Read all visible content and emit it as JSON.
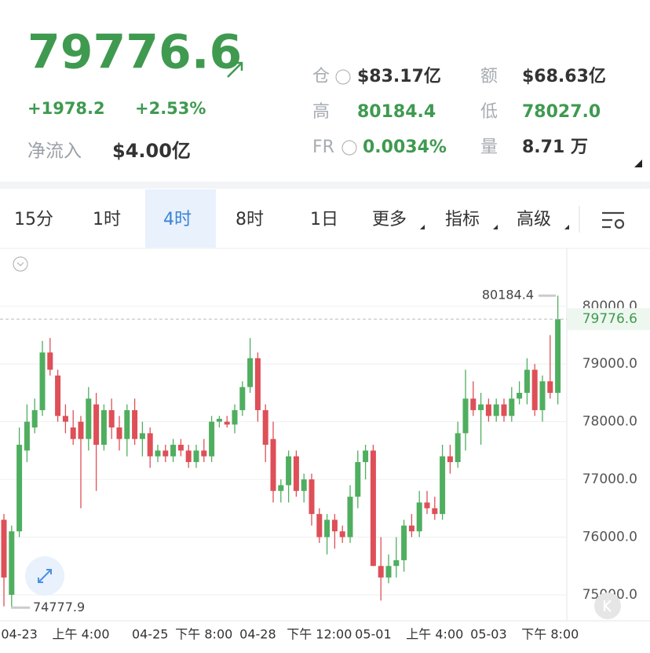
{
  "header": {
    "price": "79776.6",
    "change": "+1978.2",
    "change_pct": "+2.53%",
    "net_flow_label": "净流入",
    "net_flow_value": "$4.00亿",
    "stats": [
      [
        "仓",
        "$83.17亿",
        "额",
        "$68.63亿"
      ],
      [
        "高",
        "80184.4",
        "低",
        "78027.0"
      ],
      [
        "FR",
        "0.0034%",
        "量",
        "8.71 万"
      ]
    ]
  },
  "tabs": [
    "15分",
    "1时",
    "4时",
    "8时",
    "1日",
    "更多",
    "指标",
    "高级"
  ],
  "active_tab": 2,
  "chart_data": {
    "type": "candlestick",
    "categories": [
      null,
      null,
      "04-23",
      null,
      null,
      null,
      null,
      null,
      null,
      null,
      "上午 4:00",
      null,
      null,
      null,
      null,
      null,
      null,
      null,
      null,
      "04-25",
      null,
      null,
      null,
      null,
      null,
      null,
      "下午 8:00",
      null,
      null,
      null,
      null,
      null,
      null,
      "04-28",
      null,
      null,
      null,
      null,
      null,
      null,
      null,
      "下午 12:00",
      null,
      null,
      null,
      null,
      null,
      null,
      "05-01",
      null,
      null,
      null,
      null,
      null,
      null,
      null,
      "上午 4:00",
      null,
      null,
      null,
      null,
      null,
      null,
      "05-03",
      null,
      null,
      null,
      null,
      null,
      null,
      null,
      "下午 8:00",
      null
    ],
    "open": [
      76300,
      75000,
      76100,
      77500,
      77900,
      78200,
      79200,
      78800,
      78100,
      77900,
      78000,
      77700,
      78300,
      77600,
      78200,
      77900,
      77700,
      78200,
      77700,
      77800,
      77400,
      77500,
      77400,
      77600,
      77500,
      77300,
      77500,
      77400,
      78000,
      78000,
      77950,
      78200,
      78600,
      79100,
      78200,
      77700,
      76800,
      76900,
      77400,
      76800,
      77000,
      76400,
      76000,
      76300,
      76100,
      76000,
      76700,
      77300,
      77500,
      75500,
      75300,
      75500,
      75600,
      76200,
      76100,
      76600,
      76500,
      76400,
      77400,
      77300,
      77800,
      78400,
      78200,
      78300,
      78100,
      78300,
      78100,
      78400,
      78500,
      78900,
      78200,
      78700,
      78500
    ],
    "high": [
      76400,
      76200,
      77900,
      78300,
      78400,
      79400,
      79450,
      78900,
      78300,
      78200,
      78100,
      78600,
      78500,
      78300,
      78400,
      78100,
      78300,
      78400,
      78000,
      77900,
      77600,
      77600,
      77700,
      77700,
      77600,
      77600,
      77700,
      78100,
      78100,
      78100,
      78300,
      78700,
      79450,
      79200,
      78300,
      78000,
      77000,
      77500,
      77500,
      77100,
      77100,
      76500,
      76400,
      76400,
      76200,
      76900,
      77500,
      77600,
      77600,
      76000,
      75700,
      76000,
      76300,
      76400,
      76800,
      76800,
      76700,
      77600,
      77600,
      78000,
      78900,
      78700,
      78500,
      78400,
      78400,
      78400,
      78600,
      78700,
      79100,
      79000,
      78800,
      79500,
      80184.4
    ],
    "low": [
      74800,
      74777.9,
      76000,
      77300,
      77800,
      78100,
      78800,
      78000,
      77800,
      77600,
      76500,
      77500,
      76800,
      77500,
      77700,
      77500,
      77400,
      77600,
      77400,
      77200,
      77300,
      77300,
      77300,
      77400,
      77200,
      77200,
      77300,
      77300,
      77900,
      77900,
      77800,
      78100,
      78500,
      78000,
      77300,
      76600,
      76600,
      76600,
      76700,
      76600,
      76200,
      75900,
      75700,
      75800,
      75900,
      75900,
      76500,
      77000,
      75500,
      74900,
      75200,
      75300,
      75400,
      76000,
      76000,
      76400,
      76300,
      76300,
      77100,
      77200,
      77500,
      78100,
      77600,
      78000,
      78000,
      78000,
      78000,
      78300,
      78300,
      78100,
      78000,
      78400,
      78300
    ],
    "close": [
      75300,
      76100,
      77600,
      78000,
      78200,
      79200,
      78900,
      78100,
      78000,
      77700,
      77700,
      78400,
      77600,
      78200,
      77900,
      77700,
      78200,
      77700,
      77800,
      77400,
      77500,
      77400,
      77600,
      77500,
      77300,
      77500,
      77400,
      78000,
      78050,
      77950,
      78200,
      78600,
      79100,
      78200,
      77600,
      76800,
      76900,
      77400,
      76800,
      77000,
      76400,
      76000,
      76300,
      76100,
      76000,
      76700,
      77300,
      77500,
      75500,
      75300,
      75500,
      75600,
      76200,
      76100,
      76600,
      76500,
      76400,
      77400,
      77300,
      77800,
      78400,
      78200,
      78300,
      78100,
      78300,
      78100,
      78400,
      78500,
      78900,
      78200,
      78700,
      78500,
      79776.6
    ],
    "up_color": "#4fae5f",
    "down_color": "#de4f58",
    "ylim": [
      74550,
      80950
    ],
    "yticks": [
      {
        "value": 75000,
        "label": "75000.0"
      },
      {
        "value": 76000,
        "label": "76000.0"
      },
      {
        "value": 77000,
        "label": "77000.0"
      },
      {
        "value": 78000,
        "label": "78000.0"
      },
      {
        "value": 79000,
        "label": "79000.0"
      },
      {
        "value": 80000,
        "label": "80000.0"
      }
    ],
    "grid": true,
    "max_marker": 80184.4,
    "min_marker": 74777.9,
    "last_price": 79776.6
  }
}
